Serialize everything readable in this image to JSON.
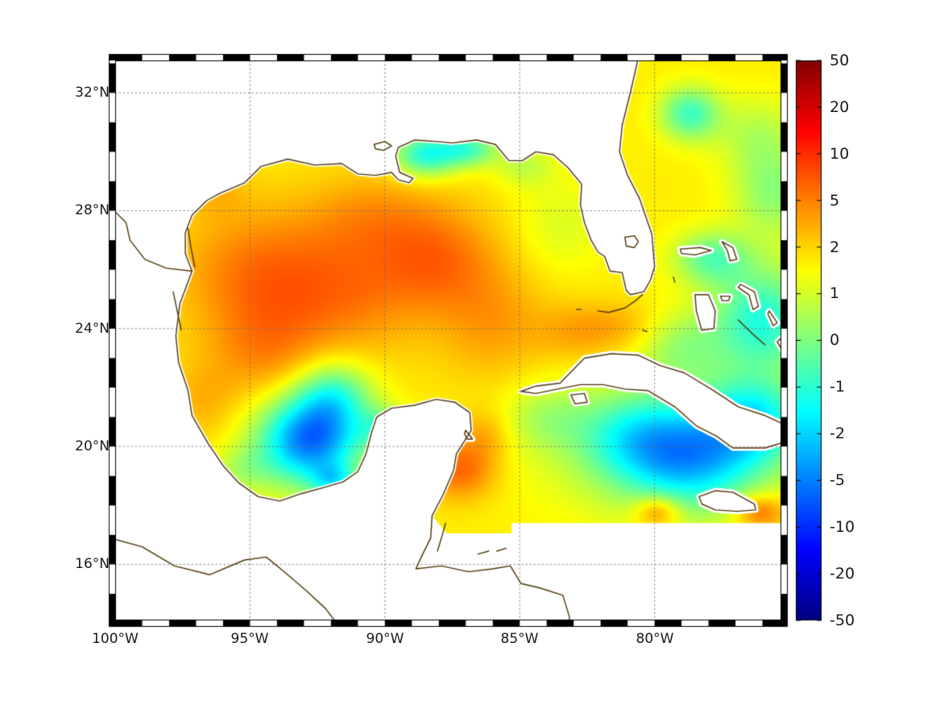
{
  "figure": {
    "background": "#ffffff"
  },
  "axes": {
    "lat_ticks": [
      {
        "label": "32°N",
        "value": 32
      },
      {
        "label": "28°N",
        "value": 28
      },
      {
        "label": "24°N",
        "value": 24
      },
      {
        "label": "20°N",
        "value": 20
      },
      {
        "label": "16°N",
        "value": 16
      }
    ],
    "lon_ticks": [
      {
        "label": "100°W",
        "value": -100
      },
      {
        "label": "95°W",
        "value": -95
      },
      {
        "label": "90°W",
        "value": -90
      },
      {
        "label": "85°W",
        "value": -85
      },
      {
        "label": "80°W",
        "value": -80
      }
    ]
  },
  "colorbar": {
    "ticks": [
      "50",
      "20",
      "10",
      "5",
      "2",
      "1",
      "0",
      "-1",
      "-2",
      "-5",
      "-10",
      "-20",
      "-50"
    ],
    "range": [
      -50,
      50
    ],
    "colormap": "jet"
  },
  "chart_data": {
    "type": "heatmap",
    "subtype": "geographic field over Gulf of Mexico and western Atlantic/Caribbean",
    "projection_extent": {
      "lon": [
        -100,
        -75.3
      ],
      "lat": [
        14.1,
        33.1
      ]
    },
    "grid": {
      "lat_lines": [
        16,
        20,
        24,
        28,
        32
      ],
      "lon_lines": [
        -100,
        -95,
        -90,
        -85,
        -80
      ],
      "style": "dotted"
    },
    "scale_ticks": [
      50,
      20,
      10,
      5,
      2,
      1,
      0,
      -1,
      -2,
      -5,
      -10,
      -20,
      -50
    ],
    "no_data_south_of_lat": 17.35,
    "field": {
      "background_level": 7.7,
      "levels_are_tick_index": "0..12 maps -50..50 on nonlinear tick scale",
      "blobs": [
        [
          -95.0,
          26.0,
          2.8,
          2.2,
          1.2
        ],
        [
          -91.5,
          25.3,
          3.0,
          2.2,
          1.3
        ],
        [
          -88.0,
          26.4,
          2.2,
          1.8,
          1.3
        ],
        [
          -94.5,
          23.2,
          2.2,
          1.8,
          1.0
        ],
        [
          -86.0,
          24.2,
          2.0,
          2.0,
          0.9
        ],
        [
          -82.7,
          23.9,
          1.7,
          1.0,
          0.9
        ],
        [
          -90.5,
          27.9,
          2.5,
          1.5,
          0.8
        ],
        [
          -92.8,
          20.2,
          1.9,
          1.5,
          -4.8
        ],
        [
          -91.9,
          21.7,
          1.4,
          1.2,
          -2.2
        ],
        [
          -88.5,
          29.9,
          1.2,
          0.75,
          -2.8
        ],
        [
          -86.9,
          30.1,
          1.1,
          0.6,
          -2.2
        ],
        [
          -84.8,
          29.5,
          1.1,
          0.7,
          -0.9
        ],
        [
          -78.6,
          19.6,
          2.4,
          1.7,
          -2.8
        ],
        [
          -76.3,
          20.9,
          1.8,
          1.4,
          -2.6
        ],
        [
          -80.8,
          20.3,
          2.0,
          1.4,
          -1.6
        ],
        [
          -79.5,
          20.0,
          4.5,
          2.3,
          -1.5
        ],
        [
          -76.0,
          24.3,
          1.9,
          1.8,
          -2.8
        ],
        [
          -77.9,
          26.4,
          1.4,
          0.9,
          -2.0
        ],
        [
          -78.7,
          31.3,
          1.1,
          0.9,
          -2.4
        ],
        [
          -76.2,
          30.6,
          1.6,
          1.3,
          -1.0
        ],
        [
          -75.6,
          28.6,
          1.5,
          1.5,
          -1.5
        ],
        [
          -87.2,
          19.2,
          1.3,
          1.0,
          1.6
        ],
        [
          -86.3,
          20.4,
          1.0,
          0.9,
          0.8
        ],
        [
          -79.9,
          17.8,
          0.85,
          0.55,
          1.8
        ],
        [
          -76.1,
          17.8,
          0.95,
          0.6,
          1.8
        ],
        [
          -91.9,
          18.85,
          0.8,
          0.55,
          -2.0
        ],
        [
          -90.0,
          20.6,
          0.9,
          0.7,
          -1.8
        ],
        [
          -96.8,
          21.5,
          1.3,
          1.3,
          0.6
        ],
        [
          -95.3,
          19.2,
          1.1,
          0.8,
          -0.9
        ],
        [
          -83.5,
          27.5,
          1.6,
          1.6,
          -0.6
        ],
        [
          -84.0,
          21.0,
          1.6,
          1.1,
          -0.9
        ],
        [
          -79.0,
          23.4,
          1.6,
          1.2,
          -1.2
        ],
        [
          -96.4,
          28.7,
          1.3,
          0.9,
          0.5
        ],
        [
          -81.0,
          24.1,
          1.3,
          0.8,
          0.5
        ]
      ]
    }
  },
  "geo": {
    "coastline_color": "#4d3305",
    "region_coast_count": 77,
    "region_close": [
      [
        -87.7,
        17.05
      ],
      [
        -85.3,
        17.05
      ],
      [
        -85.3,
        17.4
      ],
      [
        -74.8,
        17.4
      ],
      [
        -74.8,
        33.5
      ],
      [
        -80.2,
        33.5
      ]
    ],
    "coast_main": [
      [
        -80.55,
        33.4
      ],
      [
        -80.9,
        32.0
      ],
      [
        -81.2,
        30.9
      ],
      [
        -81.3,
        30.0
      ],
      [
        -81.0,
        29.2
      ],
      [
        -80.55,
        28.4
      ],
      [
        -80.1,
        27.2
      ],
      [
        -80.0,
        26.1
      ],
      [
        -80.15,
        25.65
      ],
      [
        -80.4,
        25.25
      ],
      [
        -80.9,
        25.15
      ],
      [
        -81.05,
        25.3
      ],
      [
        -81.2,
        25.9
      ],
      [
        -81.65,
        25.95
      ],
      [
        -81.85,
        26.45
      ],
      [
        -82.1,
        26.6
      ],
      [
        -82.35,
        27.0
      ],
      [
        -82.6,
        27.6
      ],
      [
        -82.75,
        28.2
      ],
      [
        -82.7,
        28.9
      ],
      [
        -83.2,
        29.45
      ],
      [
        -83.75,
        29.9
      ],
      [
        -84.4,
        30.0
      ],
      [
        -84.9,
        29.7
      ],
      [
        -85.4,
        29.7
      ],
      [
        -85.9,
        30.25
      ],
      [
        -86.6,
        30.4
      ],
      [
        -87.5,
        30.3
      ],
      [
        -88.1,
        30.35
      ],
      [
        -88.9,
        30.4
      ],
      [
        -89.5,
        30.15
      ],
      [
        -89.6,
        29.85
      ],
      [
        -89.45,
        29.3
      ],
      [
        -88.95,
        29.1
      ],
      [
        -89.1,
        28.95
      ],
      [
        -89.5,
        29.05
      ],
      [
        -89.75,
        29.3
      ],
      [
        -90.35,
        29.2
      ],
      [
        -91.0,
        29.25
      ],
      [
        -91.6,
        29.6
      ],
      [
        -92.6,
        29.55
      ],
      [
        -93.6,
        29.75
      ],
      [
        -94.6,
        29.5
      ],
      [
        -95.2,
        28.95
      ],
      [
        -96.1,
        28.6
      ],
      [
        -96.6,
        28.35
      ],
      [
        -97.15,
        27.85
      ],
      [
        -97.4,
        27.25
      ],
      [
        -97.4,
        26.55
      ],
      [
        -97.15,
        25.95
      ],
      [
        -97.6,
        24.85
      ],
      [
        -97.75,
        23.75
      ],
      [
        -97.65,
        22.85
      ],
      [
        -97.3,
        21.9
      ],
      [
        -97.15,
        21.05
      ],
      [
        -96.55,
        20.1
      ],
      [
        -96.0,
        19.35
      ],
      [
        -95.4,
        18.75
      ],
      [
        -94.7,
        18.3
      ],
      [
        -93.9,
        18.15
      ],
      [
        -93.1,
        18.4
      ],
      [
        -92.3,
        18.6
      ],
      [
        -91.55,
        18.8
      ],
      [
        -91.0,
        19.15
      ],
      [
        -90.7,
        19.75
      ],
      [
        -90.5,
        20.45
      ],
      [
        -90.3,
        21.0
      ],
      [
        -89.75,
        21.3
      ],
      [
        -88.9,
        21.4
      ],
      [
        -88.1,
        21.6
      ],
      [
        -87.4,
        21.5
      ],
      [
        -86.85,
        21.15
      ],
      [
        -86.8,
        20.55
      ],
      [
        -87.35,
        19.75
      ],
      [
        -87.45,
        19.2
      ],
      [
        -87.85,
        18.35
      ],
      [
        -88.25,
        17.65
      ],
      [
        -88.3,
        16.9
      ],
      [
        -88.65,
        16.25
      ],
      [
        -88.85,
        15.85
      ],
      [
        -87.9,
        15.95
      ],
      [
        -86.9,
        15.75
      ],
      [
        -86.0,
        15.85
      ],
      [
        -85.35,
        15.95
      ],
      [
        -84.95,
        15.35
      ],
      [
        -84.25,
        15.2
      ],
      [
        -83.4,
        14.95
      ],
      [
        -83.15,
        14.2
      ],
      [
        -83.25,
        13.7
      ]
    ],
    "pacific_coast": [
      [
        -100.4,
        16.95
      ],
      [
        -99.0,
        16.6
      ],
      [
        -97.8,
        15.95
      ],
      [
        -96.5,
        15.65
      ],
      [
        -95.2,
        16.15
      ],
      [
        -94.4,
        16.25
      ],
      [
        -93.8,
        15.8
      ],
      [
        -92.9,
        15.1
      ],
      [
        -92.2,
        14.5
      ],
      [
        -91.7,
        13.9
      ]
    ],
    "islands": {
      "cuba": [
        [
          -84.95,
          21.87
        ],
        [
          -84.4,
          22.05
        ],
        [
          -83.5,
          22.15
        ],
        [
          -82.6,
          23.0
        ],
        [
          -81.6,
          23.15
        ],
        [
          -80.6,
          23.1
        ],
        [
          -79.8,
          22.75
        ],
        [
          -78.9,
          22.5
        ],
        [
          -77.9,
          21.95
        ],
        [
          -76.9,
          21.35
        ],
        [
          -75.9,
          21.05
        ],
        [
          -75.2,
          20.75
        ],
        [
          -75.2,
          20.15
        ],
        [
          -75.9,
          19.95
        ],
        [
          -77.1,
          19.95
        ],
        [
          -77.7,
          20.35
        ],
        [
          -78.45,
          20.7
        ],
        [
          -79.25,
          21.35
        ],
        [
          -80.25,
          21.9
        ],
        [
          -81.1,
          21.95
        ],
        [
          -81.9,
          22.1
        ],
        [
          -82.75,
          22.1
        ],
        [
          -83.6,
          21.95
        ],
        [
          -84.4,
          21.8
        ]
      ],
      "isla_juventud": [
        [
          -83.1,
          21.75
        ],
        [
          -82.6,
          21.8
        ],
        [
          -82.5,
          21.5
        ],
        [
          -82.95,
          21.45
        ]
      ],
      "jamaica": [
        [
          -78.35,
          18.3
        ],
        [
          -77.75,
          18.5
        ],
        [
          -77.1,
          18.45
        ],
        [
          -76.3,
          18.05
        ],
        [
          -76.25,
          17.85
        ],
        [
          -76.95,
          17.8
        ],
        [
          -77.75,
          17.85
        ],
        [
          -78.25,
          18.05
        ]
      ],
      "andros": [
        [
          -78.5,
          25.15
        ],
        [
          -78.0,
          25.15
        ],
        [
          -77.75,
          24.6
        ],
        [
          -77.8,
          24.0
        ],
        [
          -78.25,
          23.95
        ],
        [
          -78.45,
          24.6
        ]
      ],
      "grand_bahama": [
        [
          -79.05,
          26.7
        ],
        [
          -78.3,
          26.75
        ],
        [
          -77.9,
          26.65
        ],
        [
          -78.5,
          26.5
        ],
        [
          -79.0,
          26.55
        ]
      ],
      "abaco": [
        [
          -77.5,
          26.95
        ],
        [
          -77.1,
          26.75
        ],
        [
          -76.95,
          26.35
        ],
        [
          -77.2,
          26.3
        ],
        [
          -77.3,
          26.65
        ]
      ],
      "eleuthera": [
        [
          -76.8,
          25.5
        ],
        [
          -76.3,
          25.25
        ],
        [
          -76.15,
          24.75
        ],
        [
          -76.35,
          24.65
        ],
        [
          -76.5,
          25.15
        ],
        [
          -76.9,
          25.4
        ]
      ],
      "new_providence": [
        [
          -77.55,
          25.1
        ],
        [
          -77.2,
          25.1
        ],
        [
          -77.25,
          24.95
        ],
        [
          -77.5,
          24.95
        ]
      ],
      "cat_island": [
        [
          -75.75,
          24.6
        ],
        [
          -75.45,
          24.2
        ],
        [
          -75.6,
          24.1
        ],
        [
          -75.8,
          24.5
        ]
      ],
      "long_island": [
        [
          -75.35,
          23.65
        ],
        [
          -75.0,
          23.15
        ],
        [
          -74.9,
          22.85
        ],
        [
          -75.15,
          23.1
        ],
        [
          -75.45,
          23.55
        ]
      ],
      "cozumel": [
        [
          -87.0,
          20.55
        ],
        [
          -86.75,
          20.25
        ],
        [
          -86.95,
          20.25
        ],
        [
          -87.05,
          20.45
        ]
      ]
    },
    "lines": {
      "florida_keys": [
        [
          -80.45,
          25.15
        ],
        [
          -80.7,
          24.95
        ],
        [
          -81.1,
          24.7
        ],
        [
          -81.7,
          24.55
        ],
        [
          -82.1,
          24.6
        ]
      ],
      "dry_tortugas": [
        [
          -82.9,
          24.65
        ],
        [
          -82.72,
          24.65
        ]
      ],
      "exuma_chain": [
        [
          -76.9,
          24.3
        ],
        [
          -76.4,
          23.85
        ],
        [
          -75.9,
          23.45
        ]
      ],
      "bimini": [
        [
          -79.3,
          25.75
        ],
        [
          -79.25,
          25.58
        ]
      ],
      "cay_sal": [
        [
          -80.45,
          23.95
        ],
        [
          -80.28,
          23.9
        ]
      ],
      "rio_grande": [
        [
          -97.15,
          25.95
        ],
        [
          -98.1,
          26.05
        ],
        [
          -98.9,
          26.35
        ],
        [
          -99.45,
          27.0
        ],
        [
          -99.6,
          27.6
        ],
        [
          -100.15,
          28.1
        ]
      ],
      "laguna_madre_tx": [
        [
          -97.3,
          27.4
        ],
        [
          -97.2,
          26.8
        ],
        [
          -97.05,
          26.1
        ]
      ],
      "laguna_tamaulipas": [
        [
          -97.85,
          25.25
        ],
        [
          -97.7,
          24.6
        ],
        [
          -97.55,
          23.95
        ]
      ],
      "belize_cays": [
        [
          -87.75,
          17.4
        ],
        [
          -87.9,
          16.9
        ],
        [
          -88.05,
          16.45
        ]
      ],
      "bay_islands_roatan": [
        [
          -86.55,
          16.35
        ],
        [
          -86.15,
          16.45
        ]
      ],
      "bay_islands_guanaja": [
        [
          -85.85,
          16.45
        ],
        [
          -85.5,
          16.55
        ]
      ]
    },
    "lakes": {
      "okeechobee": [
        [
          -81.1,
          27.1
        ],
        [
          -80.75,
          27.15
        ],
        [
          -80.6,
          26.95
        ],
        [
          -80.75,
          26.75
        ],
        [
          -81.05,
          26.8
        ]
      ],
      "pontchartrain": [
        [
          -90.4,
          30.25
        ],
        [
          -90.0,
          30.35
        ],
        [
          -89.75,
          30.2
        ],
        [
          -90.05,
          30.05
        ],
        [
          -90.35,
          30.1
        ]
      ]
    }
  }
}
